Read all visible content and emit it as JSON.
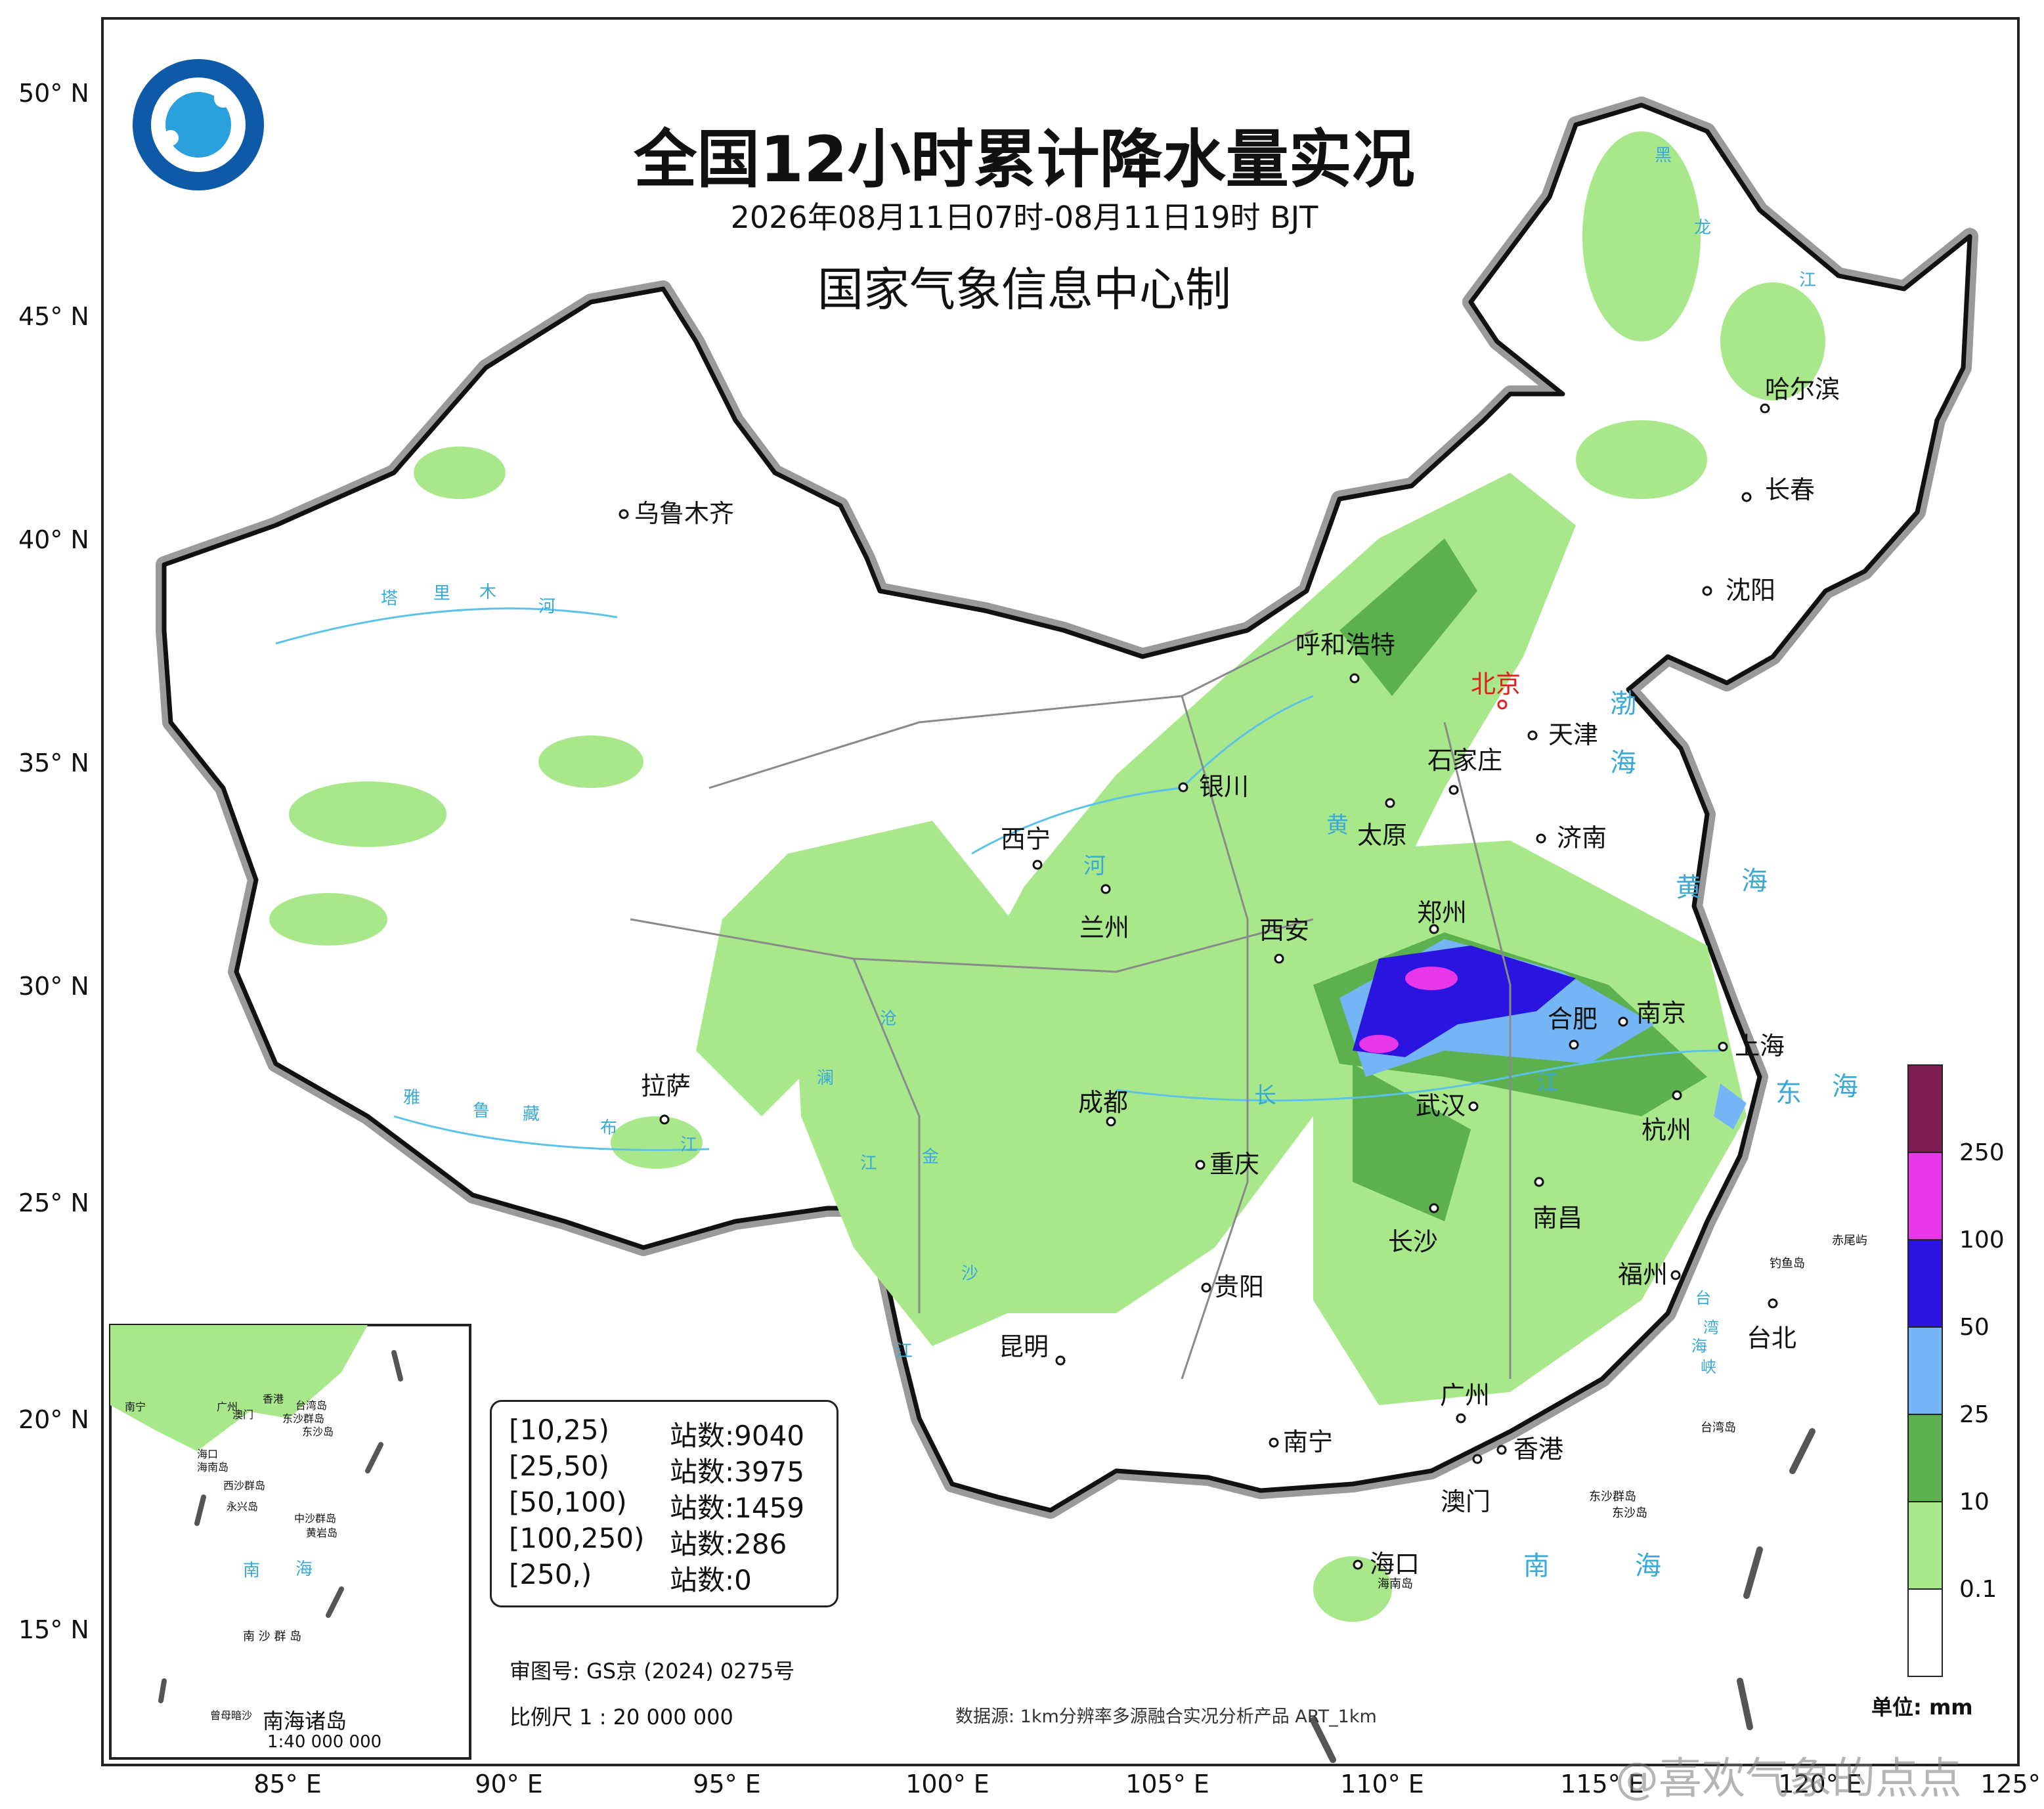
{
  "title": "全国12小时累计降水量实况",
  "time_range": "2026年08月11日07时-08月11日19时 BJT",
  "producer": "国家气象信息中心制",
  "lat_labels": [
    "50° N",
    "45° N",
    "40° N",
    "35° N",
    "30° N",
    "25° N",
    "20° N",
    "15° N"
  ],
  "lon_labels": [
    "85° E",
    "90° E",
    "95° E",
    "100° E",
    "105° E",
    "110° E",
    "115° E",
    "120° E",
    "125° E"
  ],
  "cities": [
    {
      "name": "哈尔滨",
      "red": false
    },
    {
      "name": "长春",
      "red": false
    },
    {
      "name": "沈阳",
      "red": false
    },
    {
      "name": "乌鲁木齐",
      "red": false
    },
    {
      "name": "呼和浩特",
      "red": false
    },
    {
      "name": "北京",
      "red": true
    },
    {
      "name": "天津",
      "red": false
    },
    {
      "name": "石家庄",
      "red": false
    },
    {
      "name": "银川",
      "red": false
    },
    {
      "name": "太原",
      "red": false
    },
    {
      "name": "济南",
      "red": false
    },
    {
      "name": "西宁",
      "red": false
    },
    {
      "name": "兰州",
      "red": false
    },
    {
      "name": "西安",
      "red": false
    },
    {
      "name": "郑州",
      "red": false
    },
    {
      "name": "合肥",
      "red": false
    },
    {
      "name": "南京",
      "red": false
    },
    {
      "name": "上海",
      "red": false
    },
    {
      "name": "拉萨",
      "red": false
    },
    {
      "name": "成都",
      "red": false
    },
    {
      "name": "武汉",
      "red": false
    },
    {
      "name": "杭州",
      "red": false
    },
    {
      "name": "重庆",
      "red": false
    },
    {
      "name": "长沙",
      "red": false
    },
    {
      "name": "南昌",
      "red": false
    },
    {
      "name": "贵阳",
      "red": false
    },
    {
      "name": "福州",
      "red": false
    },
    {
      "name": "台北",
      "red": false
    },
    {
      "name": "昆明",
      "red": false
    },
    {
      "name": "广州",
      "red": false
    },
    {
      "name": "南宁",
      "red": false
    },
    {
      "name": "香港",
      "red": false
    },
    {
      "name": "澳门",
      "red": false
    },
    {
      "name": "海口",
      "red": false
    }
  ],
  "small_labels": [
    "钓鱼岛",
    "赤尾屿",
    "台湾岛",
    "东沙群岛",
    "东沙岛",
    "海南岛"
  ],
  "water_labels": [
    "渤",
    "海",
    "黄",
    "海",
    "东",
    "海",
    "南",
    "海",
    "黑",
    "龙",
    "江",
    "塔",
    "里",
    "木",
    "河",
    "黄",
    "河",
    "长",
    "江",
    "雅",
    "鲁",
    "藏",
    "布",
    "江",
    "澜",
    "沧",
    "江",
    "金",
    "沙",
    "江",
    "台",
    "湾",
    "海",
    "峡"
  ],
  "stats": [
    {
      "range": "[10,25)",
      "label": "站数:9040"
    },
    {
      "range": "[25,50)",
      "label": "站数:3975"
    },
    {
      "range": "[50,100)",
      "label": "站数:1459"
    },
    {
      "range": "[100,250)",
      "label": "站数:286"
    },
    {
      "range": "[250,)",
      "label": "站数:0"
    }
  ],
  "legend": {
    "unit": "单位: mm",
    "ticks": [
      "250",
      "100",
      "50",
      "25",
      "10",
      "0.1"
    ],
    "colors": [
      "#7d1d52",
      "#e837e8",
      "#2b13e0",
      "#74b6f5",
      "#5cb04d",
      "#a8e88a",
      "#ffffff"
    ]
  },
  "review_number": "审图号: GS京 (2024) 0275号",
  "scale": "比例尺 1 : 20 000 000",
  "data_source": "数据源: 1km分辨率多源融合实况分析产品 ART_1km",
  "inset": {
    "title": "南海诸岛",
    "scale": "1:40 000 000",
    "labels": [
      "南宁",
      "广州",
      "香港",
      "台湾岛",
      "澳门",
      "东沙群岛",
      "东沙岛",
      "海口",
      "海南岛",
      "西沙群岛",
      "永兴岛",
      "中沙群岛",
      "黄岩岛",
      "南",
      "海",
      "南 沙 群 岛",
      "曾母暗沙"
    ]
  },
  "watermark": "@喜欢气象的点点"
}
